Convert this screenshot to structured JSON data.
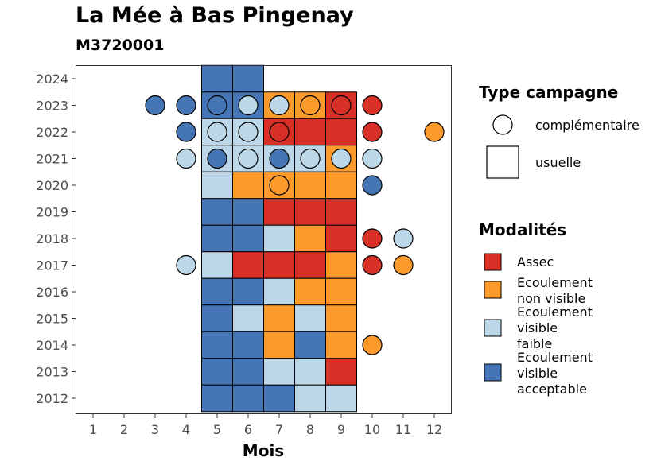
{
  "chart_data": {
    "type": "heatmap",
    "title": "La Mée à Bas Pingenay",
    "subtitle": "M3720001",
    "xlabel": "Mois",
    "ylabel": "",
    "x_ticks": [
      1,
      2,
      3,
      4,
      5,
      6,
      7,
      8,
      9,
      10,
      11,
      12
    ],
    "y_ticks": [
      2012,
      2013,
      2014,
      2015,
      2016,
      2017,
      2018,
      2019,
      2020,
      2021,
      2022,
      2023,
      2024
    ],
    "grid": false,
    "legend_position": "right",
    "colors": {
      "assec": "#d73027",
      "non_visible": "#fc9a2c",
      "faible": "#bcd7e8",
      "acceptable": "#4575b4"
    },
    "legend_type": {
      "title": "Type campagne",
      "items": [
        {
          "label": "complémentaire",
          "shape": "circle"
        },
        {
          "label": "usuelle",
          "shape": "square"
        }
      ]
    },
    "legend_modalites": {
      "title": "Modalités",
      "items": [
        {
          "key": "assec",
          "lines": [
            "Assec"
          ]
        },
        {
          "key": "non_visible",
          "lines": [
            "Ecoulement",
            "non visible"
          ]
        },
        {
          "key": "faible",
          "lines": [
            "Ecoulement",
            "visible",
            "faible"
          ]
        },
        {
          "key": "acceptable",
          "lines": [
            "Ecoulement",
            "visible",
            "acceptable"
          ]
        }
      ]
    },
    "usuelle": [
      {
        "year": 2024,
        "month": 5,
        "value": "acceptable"
      },
      {
        "year": 2024,
        "month": 6,
        "value": "acceptable"
      },
      {
        "year": 2023,
        "month": 5,
        "value": "acceptable"
      },
      {
        "year": 2023,
        "month": 6,
        "value": "acceptable"
      },
      {
        "year": 2023,
        "month": 7,
        "value": "non_visible"
      },
      {
        "year": 2023,
        "month": 8,
        "value": "non_visible"
      },
      {
        "year": 2023,
        "month": 9,
        "value": "assec"
      },
      {
        "year": 2022,
        "month": 5,
        "value": "faible"
      },
      {
        "year": 2022,
        "month": 6,
        "value": "faible"
      },
      {
        "year": 2022,
        "month": 7,
        "value": "assec"
      },
      {
        "year": 2022,
        "month": 8,
        "value": "assec"
      },
      {
        "year": 2022,
        "month": 9,
        "value": "assec"
      },
      {
        "year": 2021,
        "month": 5,
        "value": "faible"
      },
      {
        "year": 2021,
        "month": 6,
        "value": "faible"
      },
      {
        "year": 2021,
        "month": 7,
        "value": "faible"
      },
      {
        "year": 2021,
        "month": 8,
        "value": "faible"
      },
      {
        "year": 2021,
        "month": 9,
        "value": "non_visible"
      },
      {
        "year": 2020,
        "month": 5,
        "value": "faible"
      },
      {
        "year": 2020,
        "month": 6,
        "value": "non_visible"
      },
      {
        "year": 2020,
        "month": 7,
        "value": "non_visible"
      },
      {
        "year": 2020,
        "month": 8,
        "value": "non_visible"
      },
      {
        "year": 2020,
        "month": 9,
        "value": "non_visible"
      },
      {
        "year": 2019,
        "month": 5,
        "value": "acceptable"
      },
      {
        "year": 2019,
        "month": 6,
        "value": "acceptable"
      },
      {
        "year": 2019,
        "month": 7,
        "value": "assec"
      },
      {
        "year": 2019,
        "month": 8,
        "value": "assec"
      },
      {
        "year": 2019,
        "month": 9,
        "value": "assec"
      },
      {
        "year": 2018,
        "month": 5,
        "value": "acceptable"
      },
      {
        "year": 2018,
        "month": 6,
        "value": "acceptable"
      },
      {
        "year": 2018,
        "month": 7,
        "value": "faible"
      },
      {
        "year": 2018,
        "month": 8,
        "value": "non_visible"
      },
      {
        "year": 2018,
        "month": 9,
        "value": "assec"
      },
      {
        "year": 2017,
        "month": 5,
        "value": "faible"
      },
      {
        "year": 2017,
        "month": 6,
        "value": "assec"
      },
      {
        "year": 2017,
        "month": 7,
        "value": "assec"
      },
      {
        "year": 2017,
        "month": 8,
        "value": "assec"
      },
      {
        "year": 2017,
        "month": 9,
        "value": "non_visible"
      },
      {
        "year": 2016,
        "month": 5,
        "value": "acceptable"
      },
      {
        "year": 2016,
        "month": 6,
        "value": "acceptable"
      },
      {
        "year": 2016,
        "month": 7,
        "value": "faible"
      },
      {
        "year": 2016,
        "month": 8,
        "value": "non_visible"
      },
      {
        "year": 2016,
        "month": 9,
        "value": "non_visible"
      },
      {
        "year": 2015,
        "month": 5,
        "value": "acceptable"
      },
      {
        "year": 2015,
        "month": 6,
        "value": "faible"
      },
      {
        "year": 2015,
        "month": 7,
        "value": "non_visible"
      },
      {
        "year": 2015,
        "month": 8,
        "value": "faible"
      },
      {
        "year": 2015,
        "month": 9,
        "value": "non_visible"
      },
      {
        "year": 2014,
        "month": 5,
        "value": "acceptable"
      },
      {
        "year": 2014,
        "month": 6,
        "value": "acceptable"
      },
      {
        "year": 2014,
        "month": 7,
        "value": "non_visible"
      },
      {
        "year": 2014,
        "month": 8,
        "value": "acceptable"
      },
      {
        "year": 2014,
        "month": 9,
        "value": "non_visible"
      },
      {
        "year": 2013,
        "month": 5,
        "value": "acceptable"
      },
      {
        "year": 2013,
        "month": 6,
        "value": "acceptable"
      },
      {
        "year": 2013,
        "month": 7,
        "value": "faible"
      },
      {
        "year": 2013,
        "month": 8,
        "value": "faible"
      },
      {
        "year": 2013,
        "month": 9,
        "value": "assec"
      },
      {
        "year": 2012,
        "month": 5,
        "value": "acceptable"
      },
      {
        "year": 2012,
        "month": 6,
        "value": "acceptable"
      },
      {
        "year": 2012,
        "month": 7,
        "value": "acceptable"
      },
      {
        "year": 2012,
        "month": 8,
        "value": "faible"
      },
      {
        "year": 2012,
        "month": 9,
        "value": "faible"
      }
    ],
    "complementaire": [
      {
        "year": 2023,
        "month": 3,
        "value": "acceptable"
      },
      {
        "year": 2023,
        "month": 4,
        "value": "acceptable"
      },
      {
        "year": 2023,
        "month": 5,
        "value": "acceptable"
      },
      {
        "year": 2023,
        "month": 6,
        "value": "faible"
      },
      {
        "year": 2023,
        "month": 7,
        "value": "faible"
      },
      {
        "year": 2023,
        "month": 8,
        "value": "non_visible"
      },
      {
        "year": 2023,
        "month": 9,
        "value": "assec"
      },
      {
        "year": 2023,
        "month": 10,
        "value": "assec"
      },
      {
        "year": 2022,
        "month": 4,
        "value": "acceptable"
      },
      {
        "year": 2022,
        "month": 5,
        "value": "faible"
      },
      {
        "year": 2022,
        "month": 6,
        "value": "faible"
      },
      {
        "year": 2022,
        "month": 7,
        "value": "assec"
      },
      {
        "year": 2022,
        "month": 10,
        "value": "assec"
      },
      {
        "year": 2022,
        "month": 12,
        "value": "non_visible"
      },
      {
        "year": 2021,
        "month": 4,
        "value": "faible"
      },
      {
        "year": 2021,
        "month": 5,
        "value": "acceptable"
      },
      {
        "year": 2021,
        "month": 6,
        "value": "faible"
      },
      {
        "year": 2021,
        "month": 7,
        "value": "acceptable"
      },
      {
        "year": 2021,
        "month": 8,
        "value": "faible"
      },
      {
        "year": 2021,
        "month": 9,
        "value": "faible"
      },
      {
        "year": 2021,
        "month": 10,
        "value": "faible"
      },
      {
        "year": 2020,
        "month": 7,
        "value": "non_visible"
      },
      {
        "year": 2020,
        "month": 10,
        "value": "acceptable"
      },
      {
        "year": 2018,
        "month": 10,
        "value": "assec"
      },
      {
        "year": 2018,
        "month": 11,
        "value": "faible"
      },
      {
        "year": 2017,
        "month": 4,
        "value": "faible"
      },
      {
        "year": 2017,
        "month": 10,
        "value": "assec"
      },
      {
        "year": 2017,
        "month": 11,
        "value": "non_visible"
      },
      {
        "year": 2014,
        "month": 10,
        "value": "non_visible"
      }
    ]
  }
}
